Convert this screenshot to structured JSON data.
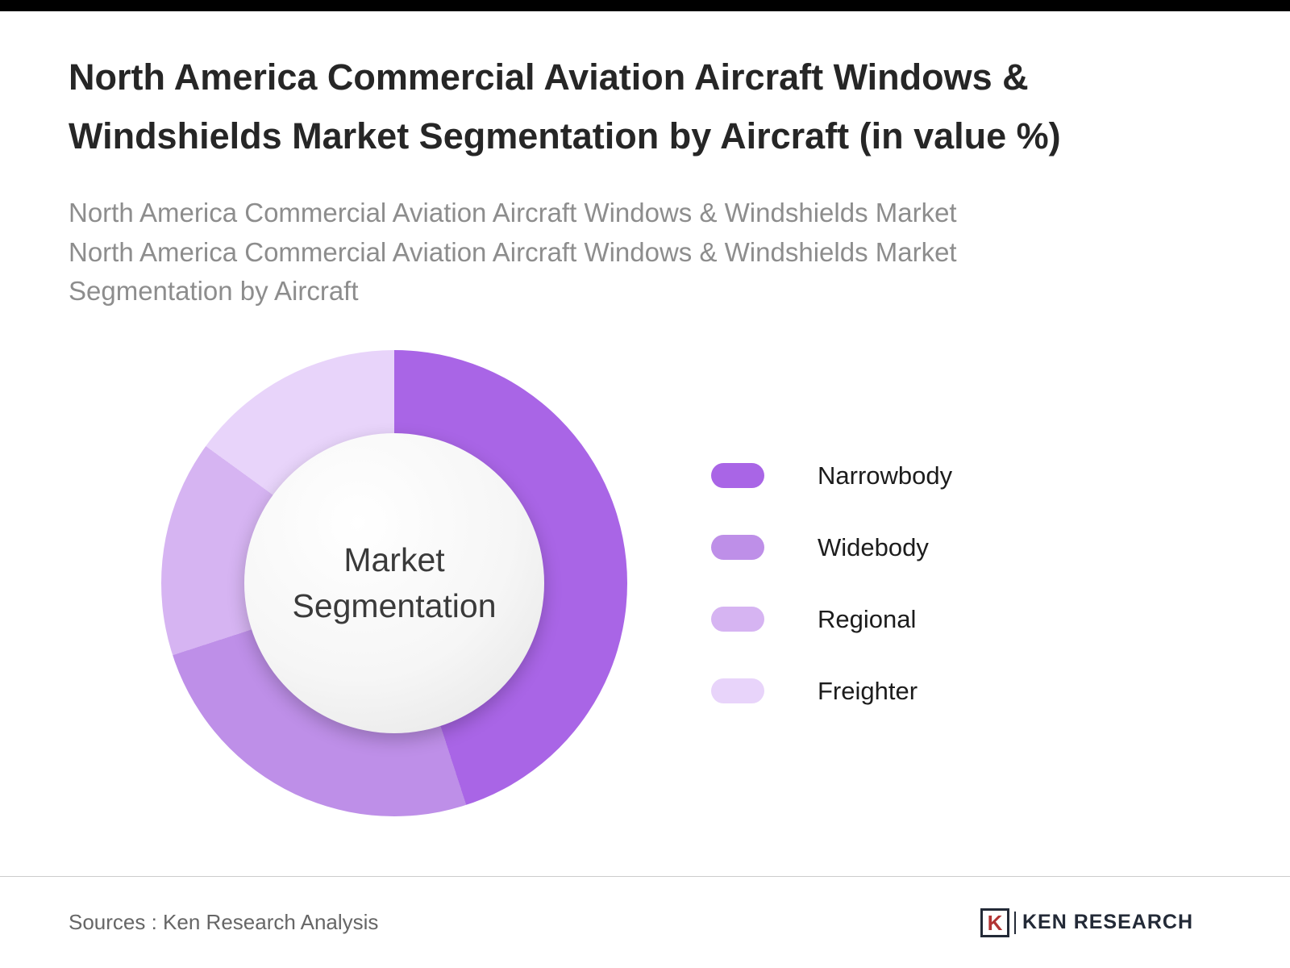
{
  "page": {
    "title_lines": [
      "North America Commercial Aviation Aircraft Windows &",
      "Windshields Market Segmentation by Aircraft (in value %)"
    ],
    "subtitle_lines": [
      "North America Commercial Aviation Aircraft Windows & Windshields Market",
      "North America Commercial Aviation Aircraft Windows & Windshields Market",
      "Segmentation by Aircraft"
    ],
    "footer_source": "Sources : Ken Research Analysis",
    "brand_initial": "K",
    "brand": "KEN RESEARCH"
  },
  "chart_data": {
    "type": "pie",
    "variant": "donut",
    "title": "North America Commercial Aviation Aircraft Windows & Windshields Market Segmentation by Aircraft (in value %)",
    "center_label": "Market Segmentation",
    "legend_position": "right",
    "start_angle_deg": 0,
    "segments": [
      {
        "label": "Narrowbody",
        "value": 45,
        "color": "#A965E6"
      },
      {
        "label": "Widebody",
        "value": 25,
        "color": "#BE8FE8"
      },
      {
        "label": "Regional",
        "value": 15,
        "color": "#D6B4F2"
      },
      {
        "label": "Freighter",
        "value": 15,
        "color": "#E8D4FA"
      }
    ]
  }
}
